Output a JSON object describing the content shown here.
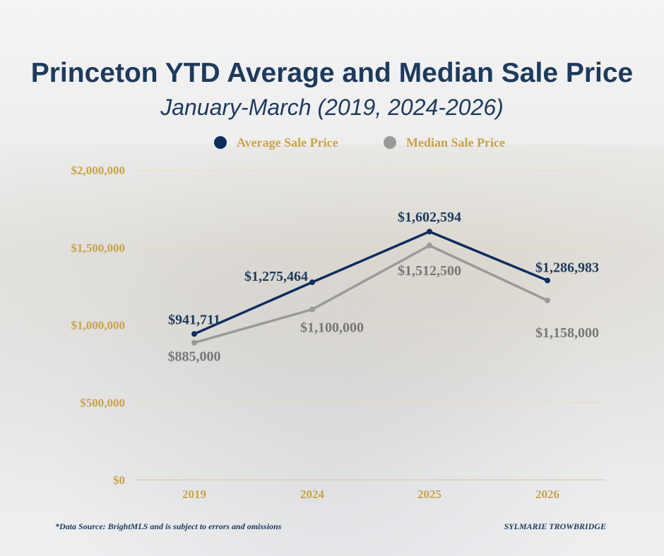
{
  "chart_data": {
    "type": "line",
    "title": "Princeton YTD Average and Median Sale Price",
    "subtitle": "January-March (2019, 2024-2026)",
    "categories": [
      "2019",
      "2024",
      "2025",
      "2026"
    ],
    "series": [
      {
        "name": "Average Sale Price",
        "color": "#0d2d5e",
        "values": [
          941711,
          1275464,
          1602594,
          1286983
        ],
        "labels": [
          "$941,711",
          "$1,275,464",
          "$1,602,594",
          "$1,286,983"
        ]
      },
      {
        "name": "Median Sale Price",
        "color": "#9a9a9a",
        "values": [
          885000,
          1100000,
          1512500,
          1158000
        ],
        "labels": [
          "$885,000",
          "$1,100,000",
          "$1,512,500",
          "$1,158,000"
        ]
      }
    ],
    "ylim": [
      0,
      2000000
    ],
    "yticks": [
      0,
      500000,
      1000000,
      1500000,
      2000000
    ],
    "ytick_labels": [
      "$0",
      "$500,000",
      "$1,000,000",
      "$1,500,000",
      "$2,000,000"
    ],
    "grid": true,
    "legend_placement": "top",
    "axis_label_color": "#c9a24a"
  },
  "footer": {
    "source": "*Data Source: BrightMLS and is subject to errors and omissions",
    "credit": "SYLMARIE TROWBRIDGE"
  }
}
